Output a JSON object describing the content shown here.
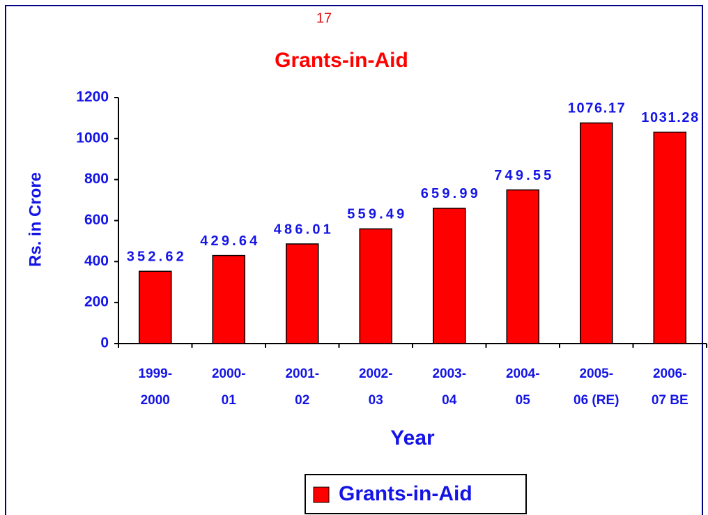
{
  "page_number": "17",
  "chart_data": {
    "type": "bar",
    "title": "Grants-in-Aid",
    "categories": [
      [
        "1999-",
        "2000"
      ],
      [
        "2000-",
        "01"
      ],
      [
        "2001-",
        "02"
      ],
      [
        "2002-",
        "03"
      ],
      [
        "2003-",
        "04"
      ],
      [
        "2004-",
        "05"
      ],
      [
        "2005-",
        "06 (RE)"
      ],
      [
        "2006-",
        "07 BE"
      ]
    ],
    "series": [
      {
        "name": "Grants-in-Aid",
        "color": "#ff0000",
        "values": [
          352.62,
          429.64,
          486.01,
          559.49,
          659.99,
          749.55,
          1076.17,
          1031.28
        ]
      }
    ],
    "ylim": [
      0,
      1200
    ],
    "yticks": [
      0,
      200,
      400,
      600,
      800,
      1000,
      1200
    ],
    "y_label": "Rs. in Crore",
    "x_label": "Year",
    "legend": "bottom"
  }
}
